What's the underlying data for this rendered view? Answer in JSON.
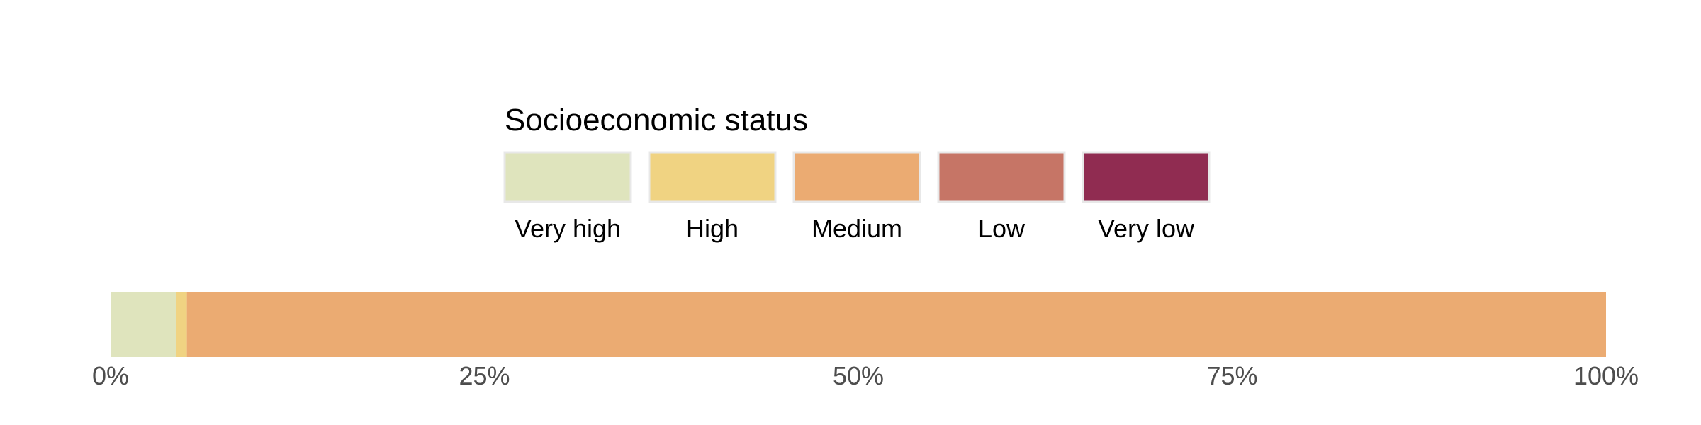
{
  "chart_data": {
    "type": "bar",
    "orientation": "horizontal",
    "stacked": true,
    "legend": {
      "title": "Socioeconomic status",
      "placement": "top-center",
      "entries": [
        {
          "label": "Very high",
          "color": "#dfe4bd"
        },
        {
          "label": "High",
          "color": "#f0d382"
        },
        {
          "label": "Medium",
          "color": "#ebab72"
        },
        {
          "label": "Low",
          "color": "#c67566"
        },
        {
          "label": "Very low",
          "color": "#902c51"
        }
      ]
    },
    "segments": [
      {
        "name": "Very high",
        "value": 4.4,
        "color": "#dfe4bd"
      },
      {
        "name": "High",
        "value": 0.7,
        "color": "#f0d382"
      },
      {
        "name": "Medium",
        "value": 94.9,
        "color": "#ebab72"
      },
      {
        "name": "Low",
        "value": 0,
        "color": "#c67566"
      },
      {
        "name": "Very low",
        "value": 0,
        "color": "#902c51"
      }
    ],
    "x_ticks": [
      "0%",
      "25%",
      "50%",
      "75%",
      "100%"
    ],
    "xlim": [
      0,
      100
    ],
    "grid": false
  }
}
